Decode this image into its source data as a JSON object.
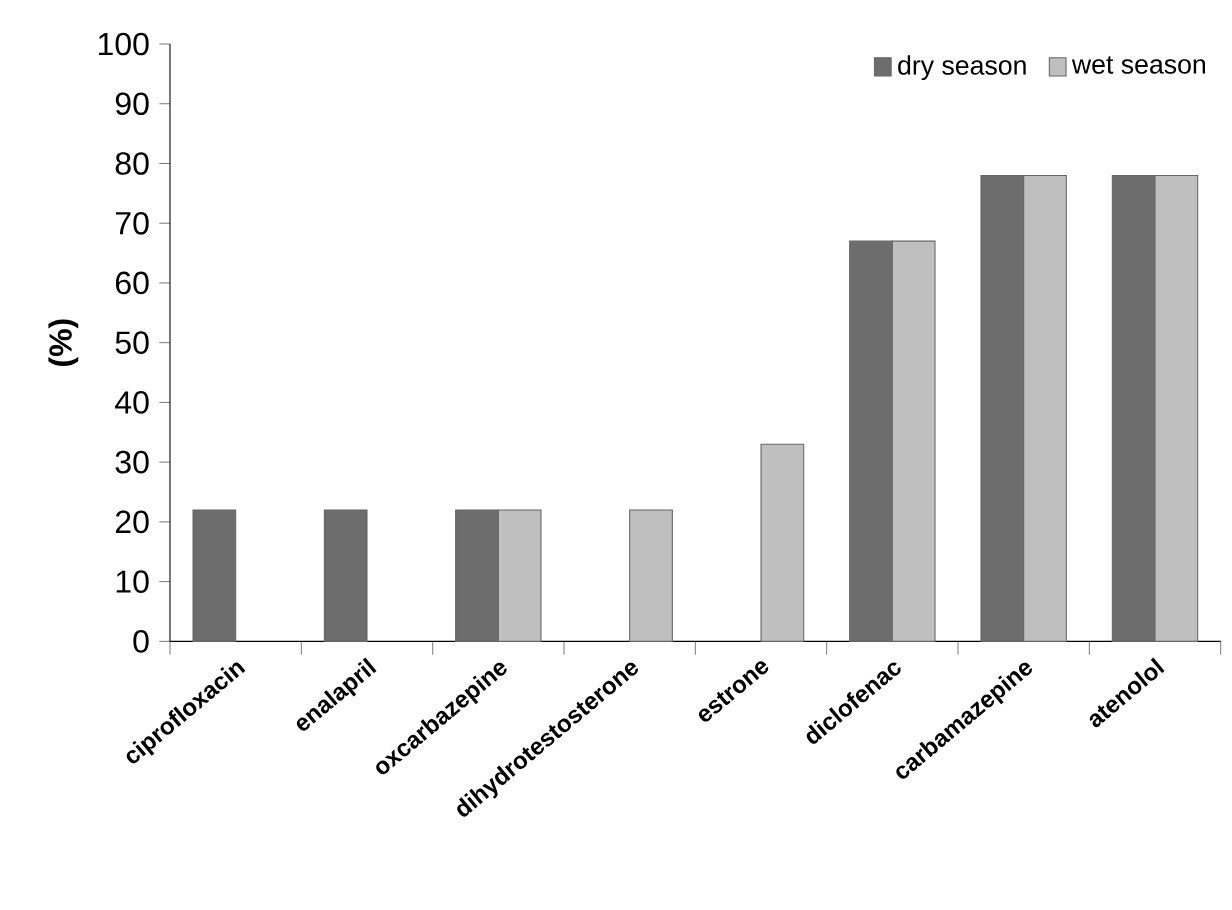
{
  "chart_data": {
    "type": "bar",
    "ylabel": "(%)",
    "categories": [
      "ciprofloxacin",
      "enalapril",
      "oxcarbazepine",
      "dihydrotestosterone",
      "estrone",
      "diclofenac",
      "carbamazepine",
      "atenolol"
    ],
    "series": [
      {
        "name": "dry season",
        "color": "#6d6d6d",
        "values": [
          22,
          22,
          22,
          null,
          null,
          67,
          78,
          78
        ]
      },
      {
        "name": "wet season",
        "color": "#bfbfbf",
        "values": [
          null,
          null,
          22,
          22,
          33,
          67,
          78,
          78
        ]
      }
    ],
    "ylim": [
      0,
      100
    ],
    "yticks": [
      0,
      10,
      20,
      30,
      40,
      50,
      60,
      70,
      80,
      90,
      100
    ],
    "grid": false,
    "legend": "top right"
  }
}
